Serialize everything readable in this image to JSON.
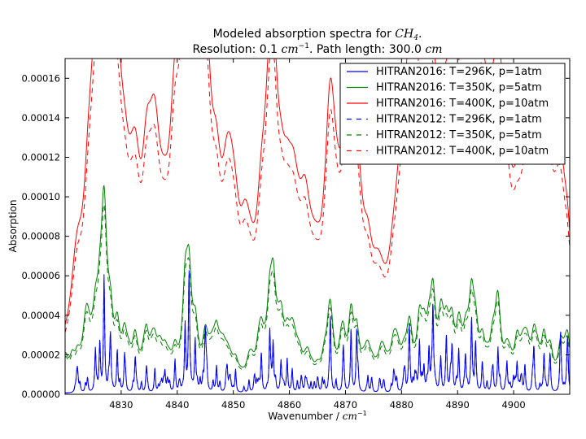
{
  "chart_data": {
    "type": "line",
    "title": {
      "line1_prefix": "Modeled absorption spectra for ",
      "line1_species": "CH",
      "line1_species_sub": "4",
      "line1_suffix": ".",
      "line2_prefix": "Resolution: 0.1 ",
      "line2_unit_base": "cm",
      "line2_unit_exp": "−1",
      "line2_suffix": ". Path length: 300.0 ",
      "line2_path_unit": "cm"
    },
    "xlabel": {
      "text": "Wavenumber / ",
      "unit_base": "cm",
      "unit_exp": "−1"
    },
    "ylabel": "Absorption",
    "xlim": [
      4820,
      4910
    ],
    "ylim": [
      0,
      0.00017
    ],
    "xticks": [
      4830,
      4840,
      4850,
      4860,
      4870,
      4880,
      4890,
      4900
    ],
    "xtick_labels": [
      "4830",
      "4840",
      "4850",
      "4860",
      "4870",
      "4880",
      "4890",
      "4900"
    ],
    "yticks": [
      0,
      2e-05,
      4e-05,
      6e-05,
      8e-05,
      0.0001,
      0.00012,
      0.00014,
      0.00016
    ],
    "ytick_labels": [
      "0.00000",
      "0.00002",
      "0.00004",
      "0.00006",
      "0.00008",
      "0.00010",
      "0.00012",
      "0.00014",
      "0.00016"
    ],
    "legend_position": "top-right",
    "peaks": [
      {
        "x": 4822.2,
        "a": 0.22
      },
      {
        "x": 4824.0,
        "a": 0.16
      },
      {
        "x": 4825.4,
        "a": 0.42
      },
      {
        "x": 4826.2,
        "a": 0.5
      },
      {
        "x": 4826.95,
        "a": 1.0
      },
      {
        "x": 4828.1,
        "a": 0.4
      },
      {
        "x": 4829.3,
        "a": 0.55
      },
      {
        "x": 4830.6,
        "a": 0.3
      },
      {
        "x": 4832.5,
        "a": 0.42
      },
      {
        "x": 4834.5,
        "a": 0.3
      },
      {
        "x": 4836.0,
        "a": 0.2
      },
      {
        "x": 4837.8,
        "a": 0.22
      },
      {
        "x": 4839.6,
        "a": 0.35
      },
      {
        "x": 4841.4,
        "a": 0.72
      },
      {
        "x": 4842.1,
        "a": 1.15
      },
      {
        "x": 4843.2,
        "a": 0.42
      },
      {
        "x": 4845.0,
        "a": 0.48
      },
      {
        "x": 4847.0,
        "a": 0.26
      },
      {
        "x": 4848.9,
        "a": 0.2
      },
      {
        "x": 4850.4,
        "a": 0.24
      },
      {
        "x": 4852.8,
        "a": 0.16
      },
      {
        "x": 4855.0,
        "a": 0.34
      },
      {
        "x": 4856.5,
        "a": 0.5
      },
      {
        "x": 4857.1,
        "a": 0.65
      },
      {
        "x": 4858.5,
        "a": 0.34
      },
      {
        "x": 4859.6,
        "a": 0.3
      },
      {
        "x": 4860.5,
        "a": 0.22
      },
      {
        "x": 4862.8,
        "a": 0.1
      },
      {
        "x": 4865.0,
        "a": 0.12
      },
      {
        "x": 4867.3,
        "a": 0.58
      },
      {
        "x": 4869.6,
        "a": 0.25
      },
      {
        "x": 4871.0,
        "a": 0.5
      },
      {
        "x": 4872.0,
        "a": 0.45
      },
      {
        "x": 4874.0,
        "a": 0.22
      },
      {
        "x": 4876.2,
        "a": 0.08
      },
      {
        "x": 4878.6,
        "a": 0.1
      },
      {
        "x": 4880.4,
        "a": 0.2
      },
      {
        "x": 4881.4,
        "a": 0.55
      },
      {
        "x": 4883.2,
        "a": 0.4
      },
      {
        "x": 4884.0,
        "a": 0.3
      },
      {
        "x": 4884.9,
        "a": 0.48
      },
      {
        "x": 4885.6,
        "a": 0.68
      },
      {
        "x": 4887.0,
        "a": 0.28
      },
      {
        "x": 4888.0,
        "a": 0.4
      },
      {
        "x": 4889.0,
        "a": 0.32
      },
      {
        "x": 4890.2,
        "a": 0.52
      },
      {
        "x": 4891.4,
        "a": 0.35
      },
      {
        "x": 4892.5,
        "a": 0.62
      },
      {
        "x": 4893.2,
        "a": 0.45
      },
      {
        "x": 4894.4,
        "a": 0.3
      },
      {
        "x": 4896.3,
        "a": 0.22
      },
      {
        "x": 4897.2,
        "a": 0.4
      },
      {
        "x": 4898.8,
        "a": 0.3
      },
      {
        "x": 4900.6,
        "a": 0.28
      },
      {
        "x": 4902.0,
        "a": 0.2
      },
      {
        "x": 4903.6,
        "a": 0.45
      },
      {
        "x": 4905.4,
        "a": 0.4
      },
      {
        "x": 4906.5,
        "a": 0.32
      },
      {
        "x": 4908.4,
        "a": 0.44
      },
      {
        "x": 4909.6,
        "a": 0.4
      }
    ],
    "series": [
      {
        "name": "HITRAN2016: T=296K, p=1atm",
        "color": "#0000ff",
        "dashed": false,
        "scale": 5.2e-05,
        "width": 0.13,
        "baseline": 5e-07,
        "seed": 11
      },
      {
        "name": "HITRAN2016: T=350K, p=5atm",
        "color": "#008000",
        "dashed": false,
        "scale": 4.5e-05,
        "width": 0.55,
        "baseline": 5e-06,
        "seed": 23
      },
      {
        "name": "HITRAN2016: T=400K, p=10atm",
        "color": "#ff0000",
        "dashed": false,
        "scale": 0.000113,
        "width": 1.05,
        "baseline": 1.1e-05,
        "seed": 37
      },
      {
        "name": "HITRAN2012: T=296K, p=1atm",
        "color": "#0000ff",
        "dashed": true,
        "scale": 5e-05,
        "width": 0.13,
        "baseline": 5e-07,
        "seed": 11
      },
      {
        "name": "HITRAN2012: T=350K, p=5atm",
        "color": "#008000",
        "dashed": true,
        "scale": 4.1e-05,
        "width": 0.55,
        "baseline": 4.5e-06,
        "seed": 23
      },
      {
        "name": "HITRAN2012: T=400K, p=10atm",
        "color": "#ff0000",
        "dashed": true,
        "scale": 0.000102,
        "width": 1.05,
        "baseline": 9.5e-06,
        "seed": 37
      }
    ]
  }
}
